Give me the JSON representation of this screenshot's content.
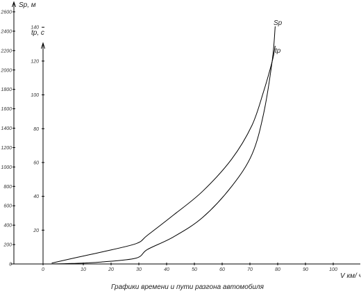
{
  "chart_data": {
    "type": "line",
    "caption": "Графики времени и пути разгона автомобиля",
    "xlabel": "V км/ ч",
    "ylabel_left": "Sр, м",
    "ylabel_right": "tр, с",
    "x_ticks": [
      "0",
      "10",
      "20",
      "30",
      "40",
      "50",
      "60",
      "70",
      "80",
      "90",
      "100"
    ],
    "x_tick_values": [
      0,
      10,
      20,
      30,
      40,
      50,
      60,
      70,
      80,
      90,
      100
    ],
    "y_left_ticks": [
      "0",
      "200",
      "400",
      "600",
      "800",
      "1000",
      "1200",
      "1400",
      "1600",
      "1800",
      "2000",
      "2200",
      "2400",
      "2600"
    ],
    "y_left_tick_values": [
      0,
      200,
      400,
      600,
      800,
      1000,
      1200,
      1400,
      1600,
      1800,
      2000,
      2200,
      2400,
      2600
    ],
    "y_right_ticks": [
      "20",
      "40",
      "60",
      "80",
      "100",
      "120",
      "140"
    ],
    "y_right_tick_values": [
      20,
      40,
      60,
      80,
      100,
      120,
      140
    ],
    "xlim": [
      -15,
      110
    ],
    "y_left_lim": [
      0,
      2650
    ],
    "y_right_lim": [
      0,
      152
    ],
    "series": [
      {
        "name": "Sр",
        "axis": "left",
        "points": [
          [
            3,
            0
          ],
          [
            10,
            5
          ],
          [
            20,
            20
          ],
          [
            32,
            60
          ],
          [
            36,
            150
          ],
          [
            45,
            280
          ],
          [
            55,
            480
          ],
          [
            65,
            800
          ],
          [
            72,
            1130
          ],
          [
            76,
            1550
          ],
          [
            79,
            2100
          ],
          [
            80,
            2450
          ]
        ]
      },
      {
        "name": "tр",
        "axis": "right",
        "points": [
          [
            3,
            0.5
          ],
          [
            12,
            4
          ],
          [
            20,
            7
          ],
          [
            32,
            12
          ],
          [
            36,
            17
          ],
          [
            45,
            29
          ],
          [
            55,
            43
          ],
          [
            65,
            62
          ],
          [
            72,
            82
          ],
          [
            76,
            102
          ],
          [
            79,
            120
          ],
          [
            80,
            129
          ]
        ]
      }
    ]
  }
}
